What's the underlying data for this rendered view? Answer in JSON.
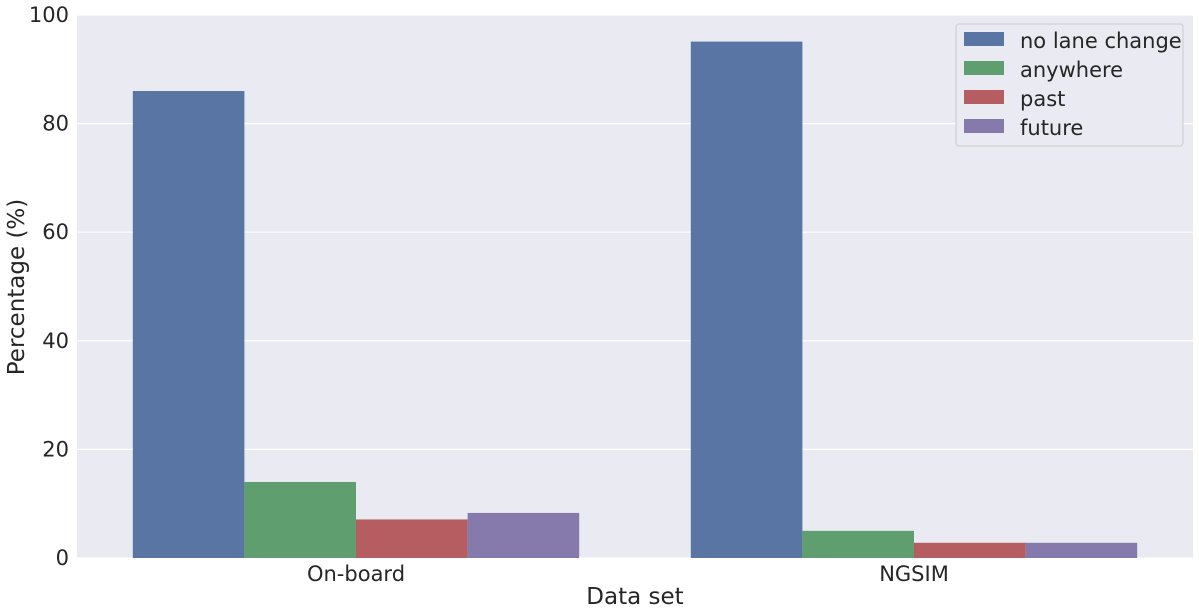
{
  "chart_data": {
    "type": "bar",
    "xlabel": "Data set",
    "ylabel": "Percentage (%)",
    "ylim": [
      0,
      100
    ],
    "yticks": [
      0,
      20,
      40,
      60,
      80,
      100
    ],
    "grid": true,
    "legend_position": "top-right",
    "categories": [
      "On-board",
      "NGSIM"
    ],
    "series": [
      {
        "name": "no lane change",
        "values": [
          86.0,
          95.1
        ],
        "color": "#5975a4"
      },
      {
        "name": "anywhere",
        "values": [
          14.0,
          5.0
        ],
        "color": "#5f9e6e"
      },
      {
        "name": "past",
        "values": [
          7.1,
          2.8
        ],
        "color": "#b55d60"
      },
      {
        "name": "future",
        "values": [
          8.3,
          2.8
        ],
        "color": "#857aab"
      }
    ],
    "background_color": "#eaeaf2"
  }
}
